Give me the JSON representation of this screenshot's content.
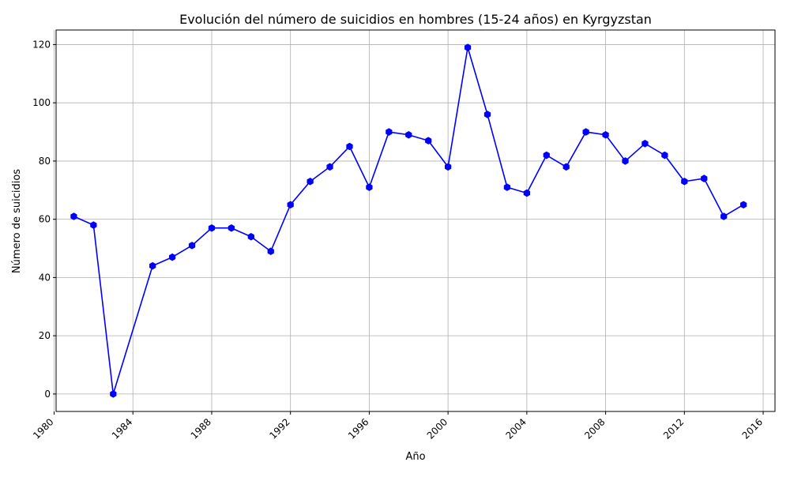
{
  "chart_data": {
    "type": "line",
    "title": "Evolución del número de suicidios en hombres (15-24 años) en Kyrgyzstan",
    "xlabel": "Año",
    "ylabel": "Número de suicidios",
    "xlim": [
      1980.1,
      2016.6
    ],
    "ylim": [
      -6,
      125
    ],
    "xticks": [
      1980,
      1984,
      1988,
      1992,
      1996,
      2000,
      2004,
      2008,
      2012,
      2016
    ],
    "xtick_labels": [
      "1980",
      "1984",
      "1988",
      "1992",
      "1996",
      "2000",
      "2004",
      "2008",
      "2012",
      "2016"
    ],
    "yticks": [
      0,
      20,
      40,
      60,
      80,
      100,
      120
    ],
    "ytick_labels": [
      "0",
      "20",
      "40",
      "60",
      "80",
      "100",
      "120"
    ],
    "grid": true,
    "series": [
      {
        "color": "#0000ff",
        "marker": "hexagon",
        "x": [
          1981,
          1982,
          1983,
          1985,
          1986,
          1987,
          1988,
          1989,
          1990,
          1991,
          1992,
          1993,
          1994,
          1995,
          1996,
          1997,
          1998,
          1999,
          2000,
          2001,
          2002,
          2003,
          2004,
          2005,
          2006,
          2007,
          2008,
          2009,
          2010,
          2011,
          2012,
          2013,
          2014,
          2015
        ],
        "y": [
          61,
          58,
          0,
          44,
          47,
          51,
          57,
          57,
          54,
          49,
          65,
          73,
          78,
          85,
          71,
          90,
          89,
          87,
          78,
          119,
          96,
          71,
          69,
          82,
          78,
          90,
          89,
          80,
          86,
          82,
          73,
          74,
          61,
          65
        ]
      }
    ]
  }
}
